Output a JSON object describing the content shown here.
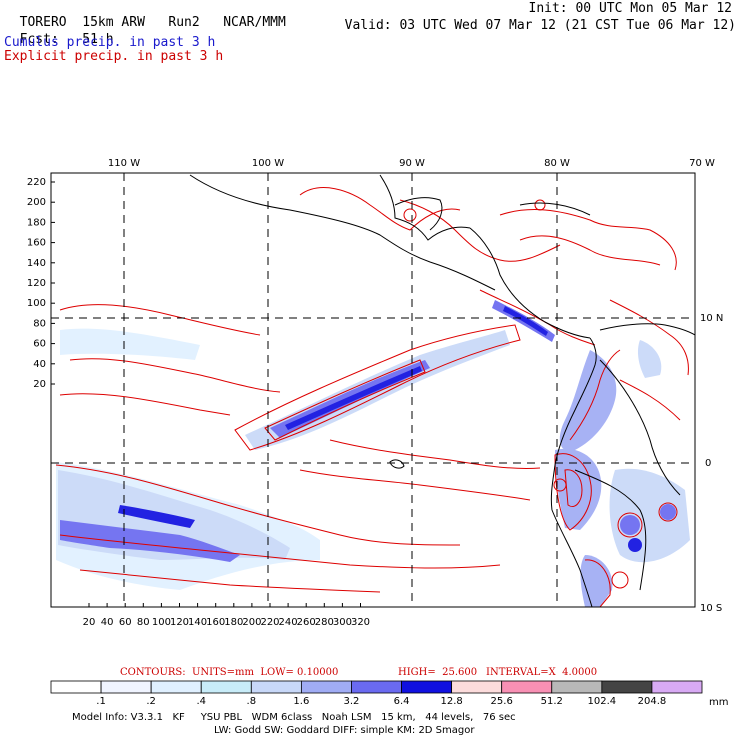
{
  "header": {
    "model": "TORERO",
    "resolution": "15km ARW",
    "run": "Run2",
    "org": "NCAR/MMM",
    "init": "Init: 00 UTC Mon 05 Mar 12",
    "fcst_label": "Fcst:",
    "fcst_value": "51 h",
    "valid": "Valid: 03 UTC Wed 07 Mar 12 (21 CST Tue 06 Mar 12)"
  },
  "legend": {
    "cumulus": "Cumulus precip. in past 3 h",
    "explicit": "Explicit precip. in past 3 h"
  },
  "map": {
    "lon_labels": [
      "110 W",
      "100 W",
      "90 W",
      "80 W",
      "70 W"
    ],
    "lat_labels": [
      "10 N",
      "0",
      "10 S"
    ],
    "y_ticks": [
      "220",
      "200",
      "180",
      "160",
      "140",
      "120",
      "100",
      "80",
      "60",
      "40",
      "20"
    ],
    "x_ticks": [
      "20",
      "40",
      "60",
      "80",
      "100",
      "120",
      "140",
      "160",
      "180",
      "200",
      "220",
      "240",
      "260",
      "280",
      "300",
      "320"
    ]
  },
  "contours_info": {
    "units": "CONTOURS:  UNITS=mm  LOW= 0.10000",
    "high": "HIGH=  25.600",
    "interval": "INTERVAL=X  4.0000"
  },
  "colorbar": {
    "labels": [
      ".1",
      ".2",
      ".4",
      ".8",
      "1.6",
      "3.2",
      "6.4",
      "12.8",
      "25.6",
      "51.2",
      "102.4",
      "204.8"
    ],
    "colors": [
      "#ffffff",
      "#f0f4ff",
      "#e0f0ff",
      "#c8ecf8",
      "#c8d8f8",
      "#a0acf4",
      "#6a6af0",
      "#1010e0",
      "#fcdcdc",
      "#f890b4",
      "#b8b8b8",
      "#444444",
      "#d8aaf4"
    ],
    "unit": "mm"
  },
  "model_info": {
    "line1": "Model Info: V3.3.1   KF     YSU PBL   WDM 6class   Noah LSM   15 km,   44 levels,   76 sec",
    "line2": "LW: Godd SW: Goddard DIFF: simple KM: 2D Smagor"
  }
}
